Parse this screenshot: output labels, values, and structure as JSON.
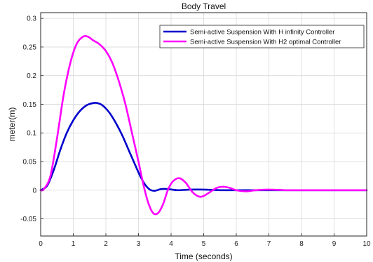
{
  "chart_data": {
    "type": "line",
    "title": "Body Travel",
    "xlabel": "Time (seconds)",
    "ylabel": "meter(m)",
    "xlim": [
      0,
      10
    ],
    "ylim": [
      -0.08,
      0.31
    ],
    "xticks": [
      0,
      1,
      2,
      3,
      4,
      5,
      6,
      7,
      8,
      9,
      10
    ],
    "yticks": [
      -0.05,
      0,
      0.05,
      0.1,
      0.15,
      0.2,
      0.25,
      0.3
    ],
    "grid": true,
    "legend_position": "top-right",
    "series": [
      {
        "name": "Semi-active Suspension With H infinity Controller",
        "color": "#0000cc",
        "x": [
          0,
          0.2,
          0.4,
          0.6,
          0.8,
          1.0,
          1.2,
          1.4,
          1.6,
          1.75,
          1.9,
          2.1,
          2.3,
          2.5,
          2.7,
          2.9,
          3.05,
          3.2,
          3.35,
          3.5,
          3.7,
          3.9,
          4.2,
          4.6,
          5.0,
          5.5,
          6.0,
          7.0,
          8.0,
          9.0,
          10.0
        ],
        "y": [
          0,
          0.008,
          0.035,
          0.07,
          0.1,
          0.122,
          0.138,
          0.148,
          0.152,
          0.152,
          0.148,
          0.136,
          0.118,
          0.096,
          0.07,
          0.044,
          0.025,
          0.01,
          0.001,
          -0.001,
          0.002,
          0.002,
          0.0,
          0.001,
          0.001,
          0.0,
          0.0,
          0.0,
          0.0,
          0.0,
          0.0
        ]
      },
      {
        "name": "Semi-active Suspension With H2 optimal Controller",
        "color": "#ff00ff",
        "x": [
          0,
          0.1,
          0.3,
          0.5,
          0.7,
          0.9,
          1.1,
          1.3,
          1.45,
          1.6,
          1.8,
          2.0,
          2.2,
          2.4,
          2.6,
          2.8,
          3.0,
          3.15,
          3.3,
          3.45,
          3.6,
          3.75,
          3.9,
          4.05,
          4.25,
          4.45,
          4.65,
          4.85,
          5.0,
          5.2,
          5.4,
          5.6,
          5.8,
          6.0,
          6.3,
          6.6,
          7.0,
          7.5,
          8.0,
          9.0,
          10.0
        ],
        "y": [
          0,
          0.002,
          0.025,
          0.09,
          0.165,
          0.22,
          0.255,
          0.268,
          0.268,
          0.262,
          0.255,
          0.243,
          0.222,
          0.19,
          0.15,
          0.1,
          0.05,
          0.01,
          -0.022,
          -0.04,
          -0.04,
          -0.025,
          0.0,
          0.015,
          0.021,
          0.013,
          -0.003,
          -0.011,
          -0.01,
          -0.003,
          0.004,
          0.006,
          0.004,
          0.0,
          -0.002,
          0.0,
          0.001,
          0.0,
          0.0,
          0.0,
          0.0
        ]
      }
    ]
  }
}
